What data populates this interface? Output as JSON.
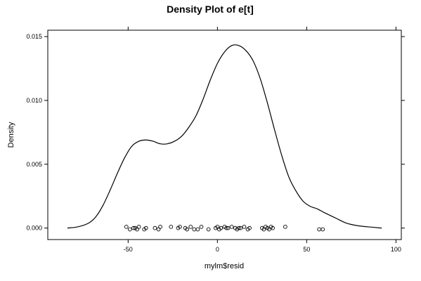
{
  "chart_data": {
    "type": "line",
    "title": "Density Plot of e[t]",
    "xlabel": "mylm$resid",
    "ylabel": "Density",
    "xlim": [
      -95,
      103
    ],
    "ylim": [
      -0.0009,
      0.0155
    ],
    "x_ticks": [
      {
        "value": -50,
        "label": "-50"
      },
      {
        "value": 0,
        "label": "0"
      },
      {
        "value": 50,
        "label": "50"
      },
      {
        "value": 100,
        "label": "100"
      }
    ],
    "y_ticks": [
      {
        "value": 0.0,
        "label": "0.000"
      },
      {
        "value": 0.005,
        "label": "0.005"
      },
      {
        "value": 0.01,
        "label": "0.010"
      },
      {
        "value": 0.015,
        "label": "0.015"
      }
    ],
    "grid": false,
    "density_curve": [
      {
        "x": -84,
        "y": 0.0
      },
      {
        "x": -78,
        "y": 0.0001
      },
      {
        "x": -72,
        "y": 0.0004
      },
      {
        "x": -68,
        "y": 0.0009
      },
      {
        "x": -64,
        "y": 0.0018
      },
      {
        "x": -60,
        "y": 0.003
      },
      {
        "x": -56,
        "y": 0.0043
      },
      {
        "x": -52,
        "y": 0.0055
      },
      {
        "x": -48,
        "y": 0.0064
      },
      {
        "x": -44,
        "y": 0.0068
      },
      {
        "x": -40,
        "y": 0.0069
      },
      {
        "x": -36,
        "y": 0.0068
      },
      {
        "x": -32,
        "y": 0.0066
      },
      {
        "x": -28,
        "y": 0.0066
      },
      {
        "x": -24,
        "y": 0.0068
      },
      {
        "x": -20,
        "y": 0.0072
      },
      {
        "x": -16,
        "y": 0.0079
      },
      {
        "x": -12,
        "y": 0.0088
      },
      {
        "x": -8,
        "y": 0.0101
      },
      {
        "x": -4,
        "y": 0.0116
      },
      {
        "x": 0,
        "y": 0.0129
      },
      {
        "x": 4,
        "y": 0.0138
      },
      {
        "x": 8,
        "y": 0.0143
      },
      {
        "x": 12,
        "y": 0.0143
      },
      {
        "x": 16,
        "y": 0.0139
      },
      {
        "x": 20,
        "y": 0.0131
      },
      {
        "x": 24,
        "y": 0.0117
      },
      {
        "x": 28,
        "y": 0.0098
      },
      {
        "x": 32,
        "y": 0.0077
      },
      {
        "x": 36,
        "y": 0.0057
      },
      {
        "x": 40,
        "y": 0.004
      },
      {
        "x": 44,
        "y": 0.0029
      },
      {
        "x": 48,
        "y": 0.0021
      },
      {
        "x": 52,
        "y": 0.0017
      },
      {
        "x": 56,
        "y": 0.0015
      },
      {
        "x": 60,
        "y": 0.0012
      },
      {
        "x": 66,
        "y": 0.0008
      },
      {
        "x": 72,
        "y": 0.0004
      },
      {
        "x": 78,
        "y": 0.0002
      },
      {
        "x": 84,
        "y": 0.0001
      },
      {
        "x": 92,
        "y": 0.0
      }
    ],
    "rug_points": [
      {
        "x": -51,
        "y": 0.0001
      },
      {
        "x": -49,
        "y": -0.0001
      },
      {
        "x": -47,
        "y": 0.0
      },
      {
        "x": -46,
        "y": 0.0
      },
      {
        "x": -45,
        "y": -0.0001
      },
      {
        "x": -44,
        "y": 0.0001
      },
      {
        "x": -41,
        "y": -0.0001
      },
      {
        "x": -40,
        "y": 0.0
      },
      {
        "x": -35,
        "y": 0.0
      },
      {
        "x": -33,
        "y": -0.0001
      },
      {
        "x": -32,
        "y": 0.0001
      },
      {
        "x": -26,
        "y": 0.0001
      },
      {
        "x": -22,
        "y": 0.0
      },
      {
        "x": -21,
        "y": 0.0001
      },
      {
        "x": -18,
        "y": 0.0
      },
      {
        "x": -17,
        "y": -0.0001
      },
      {
        "x": -15,
        "y": 0.0001
      },
      {
        "x": -13,
        "y": -0.0001
      },
      {
        "x": -11,
        "y": -0.0001
      },
      {
        "x": -9,
        "y": 0.0001
      },
      {
        "x": -5,
        "y": -0.0001
      },
      {
        "x": -1,
        "y": 0.0
      },
      {
        "x": 0,
        "y": 0.0001
      },
      {
        "x": 1,
        "y": -0.0001
      },
      {
        "x": 2,
        "y": 0.0
      },
      {
        "x": 4,
        "y": 0.0001
      },
      {
        "x": 5,
        "y": 0.0
      },
      {
        "x": 6,
        "y": 0.0
      },
      {
        "x": 8,
        "y": 0.0001
      },
      {
        "x": 10,
        "y": 0.0
      },
      {
        "x": 11,
        "y": -0.0001
      },
      {
        "x": 12,
        "y": 0.0
      },
      {
        "x": 13,
        "y": 0.0
      },
      {
        "x": 15,
        "y": 0.0001
      },
      {
        "x": 17,
        "y": -0.0001
      },
      {
        "x": 18,
        "y": 0.0
      },
      {
        "x": 25,
        "y": 0.0
      },
      {
        "x": 26,
        "y": -0.0001
      },
      {
        "x": 27,
        "y": 0.0001
      },
      {
        "x": 28,
        "y": 0.0
      },
      {
        "x": 29,
        "y": -0.0001
      },
      {
        "x": 30,
        "y": 0.0001
      },
      {
        "x": 31,
        "y": 0.0
      },
      {
        "x": 38,
        "y": 0.0001
      },
      {
        "x": 57,
        "y": -0.0001
      },
      {
        "x": 59,
        "y": -0.0001
      }
    ],
    "line_color": "#000000",
    "point_color": "#000000"
  }
}
